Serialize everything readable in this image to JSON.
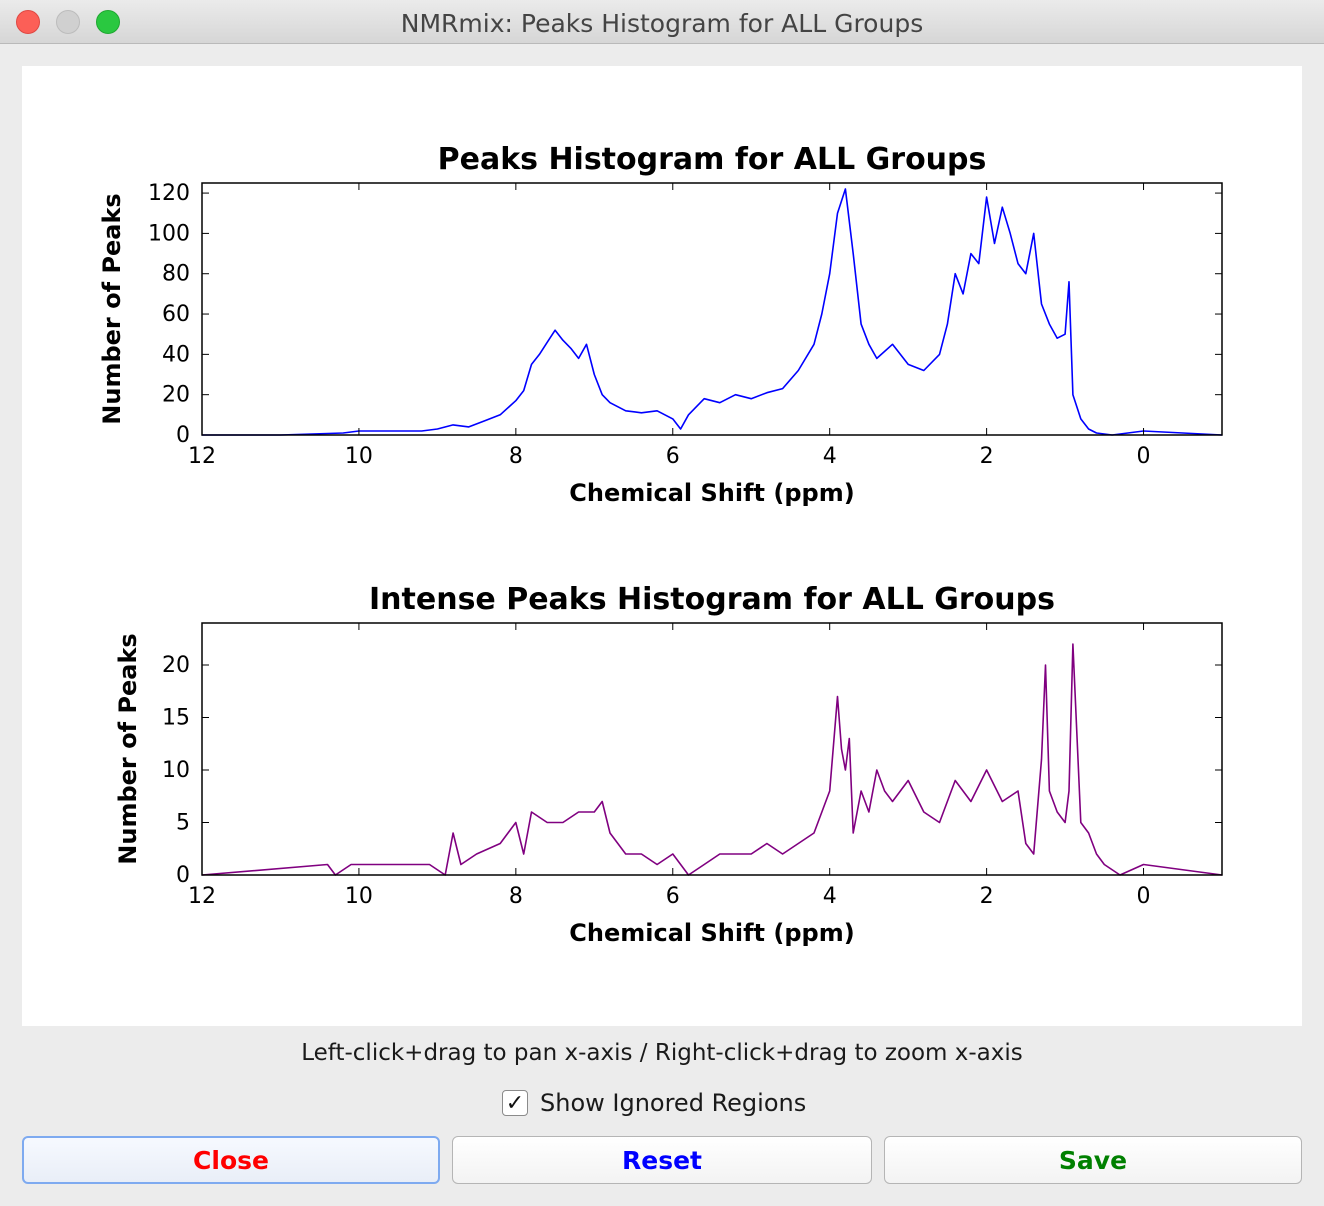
{
  "window": {
    "title": "NMRmix: Peaks Histogram for ALL Groups"
  },
  "hint_text": "Left-click+drag to pan x-axis / Right-click+drag to zoom x-axis",
  "show_ignored": {
    "label": "Show Ignored Regions",
    "checked": true,
    "mark": "✓"
  },
  "buttons": {
    "close": "Close",
    "reset": "Reset",
    "save": "Save"
  },
  "colors": {
    "close": "#ff0000",
    "reset": "#0000ff",
    "save": "#008000"
  },
  "chart_data": [
    {
      "type": "line",
      "title": "Peaks Histogram for ALL Groups",
      "xlabel": "Chemical Shift (ppm)",
      "ylabel": "Number of Peaks",
      "xlim": [
        12,
        -1
      ],
      "ylim": [
        0,
        125
      ],
      "xticks": [
        12,
        10,
        8,
        6,
        4,
        2,
        0
      ],
      "yticks": [
        0,
        20,
        40,
        60,
        80,
        100,
        120
      ],
      "color": "#0000ff",
      "x": [
        12,
        11.0,
        10.2,
        10.0,
        9.6,
        9.2,
        9.0,
        8.8,
        8.6,
        8.4,
        8.2,
        8.0,
        7.9,
        7.8,
        7.7,
        7.6,
        7.5,
        7.4,
        7.3,
        7.2,
        7.1,
        7.0,
        6.9,
        6.8,
        6.6,
        6.4,
        6.2,
        6.0,
        5.9,
        5.8,
        5.6,
        5.4,
        5.2,
        5.0,
        4.8,
        4.6,
        4.4,
        4.2,
        4.1,
        4.0,
        3.9,
        3.8,
        3.7,
        3.6,
        3.5,
        3.4,
        3.2,
        3.0,
        2.8,
        2.6,
        2.5,
        2.4,
        2.3,
        2.2,
        2.1,
        2.0,
        1.9,
        1.8,
        1.7,
        1.6,
        1.5,
        1.4,
        1.3,
        1.2,
        1.1,
        1.0,
        0.95,
        0.9,
        0.8,
        0.7,
        0.6,
        0.4,
        0.0,
        -1.0
      ],
      "y": [
        0,
        0,
        1,
        2,
        2,
        2,
        3,
        5,
        4,
        7,
        10,
        17,
        22,
        35,
        40,
        46,
        52,
        47,
        43,
        38,
        45,
        30,
        20,
        16,
        12,
        11,
        12,
        8,
        3,
        10,
        18,
        16,
        20,
        18,
        21,
        23,
        32,
        45,
        60,
        80,
        110,
        122,
        90,
        55,
        45,
        38,
        45,
        35,
        32,
        40,
        55,
        80,
        70,
        90,
        85,
        118,
        95,
        113,
        100,
        85,
        80,
        100,
        65,
        55,
        48,
        50,
        76,
        20,
        8,
        3,
        1,
        0,
        2,
        0
      ]
    },
    {
      "type": "line",
      "title": "Intense Peaks Histogram for ALL Groups",
      "xlabel": "Chemical Shift (ppm)",
      "ylabel": "Number of Peaks",
      "xlim": [
        12,
        -1
      ],
      "ylim": [
        0,
        24
      ],
      "xticks": [
        12,
        10,
        8,
        6,
        4,
        2,
        0
      ],
      "yticks": [
        0,
        5,
        10,
        15,
        20
      ],
      "color": "#800080",
      "x": [
        12,
        10.4,
        10.3,
        10.1,
        9.7,
        9.1,
        8.9,
        8.8,
        8.7,
        8.5,
        8.2,
        8.0,
        7.9,
        7.8,
        7.6,
        7.4,
        7.2,
        7.0,
        6.9,
        6.8,
        6.6,
        6.4,
        6.2,
        6.0,
        5.8,
        5.6,
        5.4,
        5.2,
        5.0,
        4.8,
        4.6,
        4.4,
        4.2,
        4.0,
        3.9,
        3.85,
        3.8,
        3.75,
        3.7,
        3.6,
        3.5,
        3.4,
        3.3,
        3.2,
        3.0,
        2.8,
        2.6,
        2.4,
        2.2,
        2.0,
        1.8,
        1.6,
        1.5,
        1.4,
        1.3,
        1.25,
        1.2,
        1.1,
        1.0,
        0.95,
        0.9,
        0.8,
        0.7,
        0.6,
        0.5,
        0.3,
        0.0,
        -1.0
      ],
      "y": [
        0,
        1,
        0,
        1,
        1,
        1,
        0,
        4,
        1,
        2,
        3,
        5,
        2,
        6,
        5,
        5,
        6,
        6,
        7,
        4,
        2,
        2,
        1,
        2,
        0,
        1,
        2,
        2,
        2,
        3,
        2,
        3,
        4,
        8,
        17,
        12,
        10,
        13,
        4,
        8,
        6,
        10,
        8,
        7,
        9,
        6,
        5,
        9,
        7,
        10,
        7,
        8,
        3,
        2,
        11,
        20,
        8,
        6,
        5,
        8,
        22,
        5,
        4,
        2,
        1,
        0,
        1,
        0
      ]
    }
  ]
}
